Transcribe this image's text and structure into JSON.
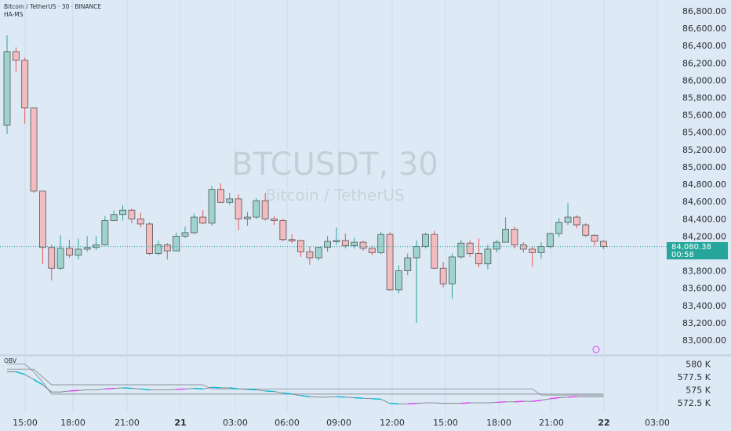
{
  "header": {
    "symbol_line": "Bitcoin / TetherUS · 30 · BINANCE",
    "indicator": "HA-MS"
  },
  "watermark": {
    "ticker": "BTCUSDT, 30",
    "name": "Bitcoin / TetherUS"
  },
  "price_axis": {
    "ticks": [
      "86,800.00",
      "86,600.00",
      "86,400.00",
      "86,200.00",
      "86,000.00",
      "85,800.00",
      "85,600.00",
      "85,400.00",
      "85,200.00",
      "85,000.00",
      "84,800.00",
      "84,600.00",
      "84,400.00",
      "84,200.00",
      "83,800.00",
      "83,600.00",
      "83,400.00",
      "83,200.00",
      "83,000.00"
    ],
    "current_price": "84,080.38",
    "countdown": "00:58"
  },
  "obv_panel": {
    "label": "OBV",
    "ticks": [
      "580 K",
      "577.5 K",
      "575 K",
      "572.5 K"
    ]
  },
  "time_axis": {
    "labels": [
      "15:00",
      "18:00",
      "21:00",
      "21",
      "03:00",
      "06:00",
      "09:00",
      "12:00",
      "15:00",
      "18:00",
      "21:00",
      "22",
      "03:00"
    ]
  },
  "colors": {
    "up": "#26a69a",
    "down": "#ef5350",
    "background": "#dde9f5",
    "obv_accent_cyan": "#00bcd4",
    "obv_accent_magenta": "#e040fb"
  },
  "chart_data": {
    "type": "candlestick",
    "timeframe": "30",
    "ylim": [
      82900,
      86900
    ],
    "candles": [
      {
        "o": 85480,
        "h": 86520,
        "l": 85380,
        "c": 86330
      },
      {
        "o": 86330,
        "h": 86380,
        "l": 86100,
        "c": 86230
      },
      {
        "o": 86230,
        "h": 86260,
        "l": 85500,
        "c": 85680
      },
      {
        "o": 85680,
        "h": 85680,
        "l": 84700,
        "c": 84720
      },
      {
        "o": 84720,
        "h": 84720,
        "l": 83880,
        "c": 84070
      },
      {
        "o": 84070,
        "h": 84100,
        "l": 83690,
        "c": 83830
      },
      {
        "o": 83830,
        "h": 84210,
        "l": 83810,
        "c": 84060
      },
      {
        "o": 84060,
        "h": 84160,
        "l": 83950,
        "c": 83980
      },
      {
        "o": 83980,
        "h": 84170,
        "l": 83930,
        "c": 84050
      },
      {
        "o": 84050,
        "h": 84200,
        "l": 84020,
        "c": 84070
      },
      {
        "o": 84070,
        "h": 84200,
        "l": 84040,
        "c": 84100
      },
      {
        "o": 84100,
        "h": 84430,
        "l": 84090,
        "c": 84380
      },
      {
        "o": 84380,
        "h": 84500,
        "l": 84380,
        "c": 84450
      },
      {
        "o": 84450,
        "h": 84560,
        "l": 84380,
        "c": 84500
      },
      {
        "o": 84500,
        "h": 84520,
        "l": 84350,
        "c": 84400
      },
      {
        "o": 84400,
        "h": 84470,
        "l": 84300,
        "c": 84340
      },
      {
        "o": 84340,
        "h": 84360,
        "l": 83980,
        "c": 84000
      },
      {
        "o": 84000,
        "h": 84150,
        "l": 83980,
        "c": 84100
      },
      {
        "o": 84100,
        "h": 84120,
        "l": 83930,
        "c": 84030
      },
      {
        "o": 84030,
        "h": 84240,
        "l": 84030,
        "c": 84200
      },
      {
        "o": 84200,
        "h": 84310,
        "l": 84180,
        "c": 84240
      },
      {
        "o": 84240,
        "h": 84460,
        "l": 84220,
        "c": 84420
      },
      {
        "o": 84420,
        "h": 84500,
        "l": 84340,
        "c": 84350
      },
      {
        "o": 84350,
        "h": 84780,
        "l": 84320,
        "c": 84740
      },
      {
        "o": 84740,
        "h": 84810,
        "l": 84580,
        "c": 84590
      },
      {
        "o": 84590,
        "h": 84700,
        "l": 84560,
        "c": 84630
      },
      {
        "o": 84630,
        "h": 84680,
        "l": 84270,
        "c": 84400
      },
      {
        "o": 84400,
        "h": 84480,
        "l": 84320,
        "c": 84420
      },
      {
        "o": 84420,
        "h": 84640,
        "l": 84400,
        "c": 84610
      },
      {
        "o": 84610,
        "h": 84700,
        "l": 84380,
        "c": 84400
      },
      {
        "o": 84400,
        "h": 84430,
        "l": 84330,
        "c": 84380
      },
      {
        "o": 84380,
        "h": 84400,
        "l": 84140,
        "c": 84160
      },
      {
        "o": 84160,
        "h": 84220,
        "l": 84120,
        "c": 84150
      },
      {
        "o": 84150,
        "h": 84160,
        "l": 83960,
        "c": 84020
      },
      {
        "o": 84020,
        "h": 84080,
        "l": 83870,
        "c": 83950
      },
      {
        "o": 83950,
        "h": 84080,
        "l": 83920,
        "c": 84070
      },
      {
        "o": 84070,
        "h": 84200,
        "l": 84020,
        "c": 84140
      },
      {
        "o": 84140,
        "h": 84300,
        "l": 84100,
        "c": 84150
      },
      {
        "o": 84150,
        "h": 84230,
        "l": 84060,
        "c": 84090
      },
      {
        "o": 84090,
        "h": 84180,
        "l": 84060,
        "c": 84130
      },
      {
        "o": 84130,
        "h": 84150,
        "l": 84030,
        "c": 84060
      },
      {
        "o": 84060,
        "h": 84090,
        "l": 83980,
        "c": 84010
      },
      {
        "o": 84010,
        "h": 84250,
        "l": 83990,
        "c": 84220
      },
      {
        "o": 84220,
        "h": 84250,
        "l": 83570,
        "c": 83580
      },
      {
        "o": 83580,
        "h": 83860,
        "l": 83540,
        "c": 83800
      },
      {
        "o": 83800,
        "h": 84000,
        "l": 83750,
        "c": 83950
      },
      {
        "o": 83950,
        "h": 84150,
        "l": 83200,
        "c": 84080
      },
      {
        "o": 84080,
        "h": 84240,
        "l": 84060,
        "c": 84220
      },
      {
        "o": 84220,
        "h": 84260,
        "l": 83820,
        "c": 83830
      },
      {
        "o": 83830,
        "h": 83900,
        "l": 83610,
        "c": 83650
      },
      {
        "o": 83650,
        "h": 84000,
        "l": 83480,
        "c": 83960
      },
      {
        "o": 83960,
        "h": 84160,
        "l": 83940,
        "c": 84120
      },
      {
        "o": 84120,
        "h": 84150,
        "l": 83960,
        "c": 84000
      },
      {
        "o": 84000,
        "h": 84170,
        "l": 83840,
        "c": 83880
      },
      {
        "o": 83880,
        "h": 84100,
        "l": 83820,
        "c": 84050
      },
      {
        "o": 84050,
        "h": 84160,
        "l": 84010,
        "c": 84130
      },
      {
        "o": 84130,
        "h": 84420,
        "l": 84130,
        "c": 84280
      },
      {
        "o": 84280,
        "h": 84310,
        "l": 84060,
        "c": 84100
      },
      {
        "o": 84100,
        "h": 84130,
        "l": 84010,
        "c": 84050
      },
      {
        "o": 84050,
        "h": 84080,
        "l": 83850,
        "c": 84010
      },
      {
        "o": 84010,
        "h": 84130,
        "l": 83940,
        "c": 84080
      },
      {
        "o": 84080,
        "h": 84240,
        "l": 84060,
        "c": 84230
      },
      {
        "o": 84230,
        "h": 84410,
        "l": 84190,
        "c": 84360
      },
      {
        "o": 84360,
        "h": 84580,
        "l": 84330,
        "c": 84420
      },
      {
        "o": 84420,
        "h": 84440,
        "l": 84290,
        "c": 84330
      },
      {
        "o": 84330,
        "h": 84350,
        "l": 84190,
        "c": 84210
      },
      {
        "o": 84210,
        "h": 84220,
        "l": 84090,
        "c": 84140
      },
      {
        "o": 84140,
        "h": 84150,
        "l": 84050,
        "c": 84080
      }
    ],
    "obv": {
      "ylim": [
        571000,
        581000
      ],
      "lines": [
        [
          580000,
          580000,
          580000,
          578500,
          576500,
          574200,
          574200,
          574200,
          574200,
          574200,
          574200,
          574200,
          574200,
          574200,
          574200,
          574200,
          574200,
          574200,
          574200,
          574200,
          574200,
          574200,
          574200,
          574200,
          574200,
          574200,
          574200,
          574200,
          574200,
          574200,
          574200,
          574200,
          574200,
          574200,
          574200,
          574200,
          574200,
          574200,
          574200,
          574200,
          574200,
          574200,
          574200,
          574200,
          574200,
          574200,
          574200,
          574200,
          574200,
          574200,
          574200,
          574200,
          574200,
          574200,
          574200,
          574200,
          574200,
          574200,
          574200,
          574200,
          574200,
          574200,
          574200,
          574200,
          574200,
          574200,
          574200,
          574200
        ],
        [
          579000,
          579000,
          579000,
          579000,
          577500,
          576000,
          576000,
          576000,
          576000,
          576000,
          576000,
          576000,
          576000,
          576000,
          576000,
          576000,
          576000,
          576000,
          576000,
          576000,
          576000,
          576000,
          576000,
          575200,
          575200,
          575200,
          575200,
          575200,
          575200,
          575200,
          575200,
          575200,
          575200,
          575200,
          575200,
          575200,
          575200,
          575200,
          575200,
          575200,
          575200,
          575200,
          575200,
          575200,
          575200,
          575200,
          575200,
          575200,
          575200,
          575200,
          575200,
          575200,
          575200,
          575200,
          575200,
          575200,
          575200,
          575200,
          575200,
          575200,
          574000,
          574000,
          574000,
          574000,
          574000,
          574000,
          574000,
          574000
        ],
        [
          578500,
          578500,
          578000,
          577000,
          576000,
          574600,
          574600,
          574800,
          574900,
          575000,
          575000,
          575200,
          575300,
          575400,
          575300,
          575200,
          575000,
          575000,
          575000,
          575100,
          575200,
          575300,
          575200,
          575500,
          575400,
          575400,
          575200,
          575100,
          575000,
          574800,
          574700,
          574400,
          574200,
          573900,
          573700,
          573600,
          573600,
          573700,
          573600,
          573500,
          573400,
          573300,
          573200,
          572400,
          572300,
          572300,
          572400,
          572500,
          572500,
          572400,
          572400,
          572400,
          572500,
          572500,
          572500,
          572600,
          572700,
          572700,
          572800,
          572800,
          573000,
          573300,
          573500,
          573600,
          573700,
          573700,
          573700,
          573700
        ]
      ]
    }
  }
}
